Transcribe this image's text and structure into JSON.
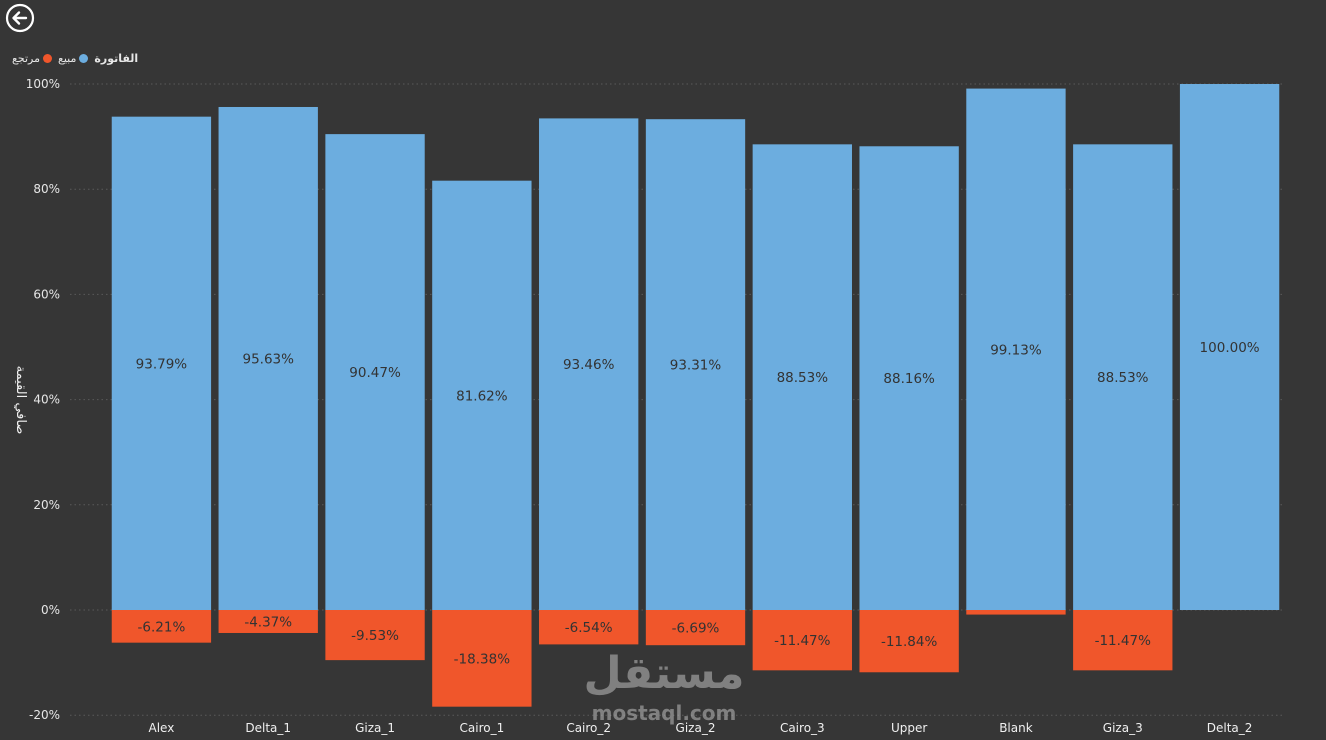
{
  "legend": {
    "title": "الفاتورة",
    "items": [
      {
        "label": "مبيع",
        "color": "#6CADDF"
      },
      {
        "label": "مرتجع",
        "color": "#F0562B"
      }
    ]
  },
  "watermark": {
    "logo_text": "مستقل",
    "domain_text": "mostaql.com"
  },
  "chart_data": {
    "type": "bar",
    "stacked": true,
    "title": "",
    "xlabel": "",
    "ylabel": "صافي القيمة",
    "ylim": [
      -20,
      100
    ],
    "yticks": [
      "100%",
      "80%",
      "60%",
      "40%",
      "20%",
      "0%",
      "-20%"
    ],
    "ytick_values": [
      100,
      80,
      60,
      40,
      20,
      0,
      -20
    ],
    "grid": true,
    "legend_position": "top-left",
    "categories": [
      "Alex",
      "Delta_1",
      "Giza_1",
      "Cairo_1",
      "Cairo_2",
      "Giza_2",
      "Cairo_3",
      "Upper",
      "Blank",
      "Giza_3",
      "Delta_2"
    ],
    "series": [
      {
        "name": "مبيع",
        "color": "#6CADDF",
        "values": [
          93.79,
          95.63,
          90.47,
          81.62,
          93.46,
          93.31,
          88.53,
          88.16,
          99.13,
          88.53,
          100.0
        ],
        "labels": [
          "93.79%",
          "95.63%",
          "90.47%",
          "81.62%",
          "93.46%",
          "93.31%",
          "88.53%",
          "88.16%",
          "99.13%",
          "88.53%",
          "100.00%"
        ]
      },
      {
        "name": "مرتجع",
        "color": "#F0562B",
        "values": [
          -6.21,
          -4.37,
          -9.53,
          -18.38,
          -6.54,
          -6.69,
          -11.47,
          -11.84,
          -0.87,
          -11.47,
          0
        ],
        "labels": [
          "-6.21%",
          "-4.37%",
          "-9.53%",
          "-18.38%",
          "-6.54%",
          "-6.69%",
          "-11.47%",
          "-11.84%",
          "",
          "-11.47%",
          ""
        ]
      }
    ]
  }
}
